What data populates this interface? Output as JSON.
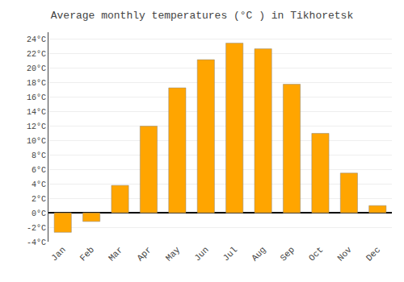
{
  "chart_data": {
    "type": "bar",
    "title": "Average monthly temperatures (°C ) in Tikhoretsk",
    "categories": [
      "Jan",
      "Feb",
      "Mar",
      "Apr",
      "May",
      "Jun",
      "Jul",
      "Aug",
      "Sep",
      "Oct",
      "Nov",
      "Dec"
    ],
    "values": [
      -2.7,
      -1.2,
      3.8,
      12.0,
      17.3,
      21.2,
      23.5,
      22.7,
      17.8,
      11.0,
      5.5,
      1.0
    ],
    "color": "#FFA500",
    "ylim": [
      -4,
      25
    ],
    "yticks": [
      {
        "value": -4,
        "label": "-4°C"
      },
      {
        "value": -2,
        "label": "-2°C"
      },
      {
        "value": 0,
        "label": "0°C"
      },
      {
        "value": 2,
        "label": "2°C"
      },
      {
        "value": 4,
        "label": "4°C"
      },
      {
        "value": 6,
        "label": "6°C"
      },
      {
        "value": 8,
        "label": "8°C"
      },
      {
        "value": 10,
        "label": "10°C"
      },
      {
        "value": 12,
        "label": "12°C"
      },
      {
        "value": 14,
        "label": "14°C"
      },
      {
        "value": 16,
        "label": "16°C"
      },
      {
        "value": 18,
        "label": "18°C"
      },
      {
        "value": 20,
        "label": "20°C"
      },
      {
        "value": 22,
        "label": "22°C"
      },
      {
        "value": 24,
        "label": "24°C"
      }
    ],
    "grid": true
  }
}
